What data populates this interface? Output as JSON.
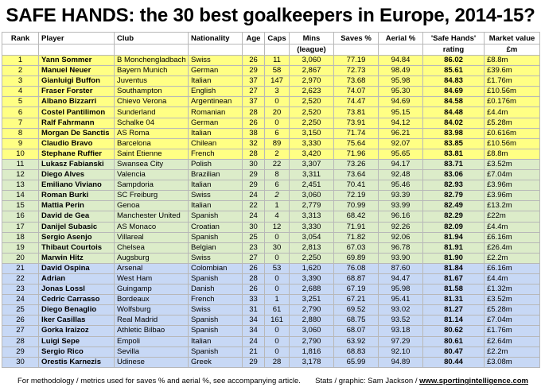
{
  "title": "SAFE HANDS: the 30 best goalkeepers in Europe, 2014-15?",
  "headers": {
    "rank": "Rank",
    "player": "Player",
    "club": "Club",
    "nationality": "Nationality",
    "age": "Age",
    "caps": "Caps",
    "mins": "Mins",
    "mins_sub": "(league)",
    "saves": "Saves %",
    "aerial": "Aerial %",
    "rating": "'Safe Hands'",
    "rating_sub": "rating",
    "market": "Market value",
    "market_sub": "£m"
  },
  "band_colors": {
    "yellow": "#ffff84",
    "green": "#dcecc9",
    "blue": "#c7d8f5"
  },
  "rows": [
    {
      "rank": "1",
      "player": "Yann Sommer",
      "club": "B Monchengladbach",
      "nationality": "Swiss",
      "age": "26",
      "caps": "11",
      "mins": "3,060",
      "saves": "77.19",
      "aerial": "94.84",
      "rating": "86.02",
      "market": "£8.8m",
      "band": "yellow",
      "caps_italic": false
    },
    {
      "rank": "2",
      "player": "Manuel Neuer",
      "club": "Bayern Munich",
      "nationality": "German",
      "age": "29",
      "caps": "58",
      "mins": "2,867",
      "saves": "72.73",
      "aerial": "98.49",
      "rating": "85.61",
      "market": "£39.6m",
      "band": "yellow",
      "caps_italic": false
    },
    {
      "rank": "3",
      "player": "Gianluigi Buffon",
      "club": "Juventus",
      "nationality": "Italian",
      "age": "37",
      "caps": "147",
      "mins": "2,970",
      "saves": "73.68",
      "aerial": "95.98",
      "rating": "84.83",
      "market": "£1.76m",
      "band": "yellow",
      "caps_italic": false
    },
    {
      "rank": "4",
      "player": "Fraser Forster",
      "club": "Southampton",
      "nationality": "English",
      "age": "27",
      "caps": "3",
      "mins": "2,623",
      "saves": "74.07",
      "aerial": "95.30",
      "rating": "84.69",
      "market": "£10.56m",
      "band": "yellow",
      "caps_italic": false
    },
    {
      "rank": "5",
      "player": "Albano Bizzarri",
      "club": "Chievo Verona",
      "nationality": "Argentinean",
      "age": "37",
      "caps": "0",
      "mins": "2,520",
      "saves": "74.47",
      "aerial": "94.69",
      "rating": "84.58",
      "market": "£0.176m",
      "band": "yellow",
      "caps_italic": false
    },
    {
      "rank": "6",
      "player": "Costel Pantilimon",
      "club": "Sunderland",
      "nationality": "Romanian",
      "age": "28",
      "caps": "20",
      "mins": "2,520",
      "saves": "73.81",
      "aerial": "95.15",
      "rating": "84.48",
      "market": "£4.4m",
      "band": "yellow",
      "caps_italic": false
    },
    {
      "rank": "7",
      "player": "Ralf Fahrmann",
      "club": "Schalke 04",
      "nationality": "German",
      "age": "26",
      "caps": "0",
      "mins": "2,250",
      "saves": "73.91",
      "aerial": "94.12",
      "rating": "84.02",
      "market": "£5.28m",
      "band": "yellow",
      "caps_italic": false
    },
    {
      "rank": "8",
      "player": "Morgan De Sanctis",
      "club": "AS Roma",
      "nationality": "Italian",
      "age": "38",
      "caps": "6",
      "mins": "3,150",
      "saves": "71.74",
      "aerial": "96.21",
      "rating": "83.98",
      "market": "£0.616m",
      "band": "yellow",
      "caps_italic": false
    },
    {
      "rank": "9",
      "player": "Claudio Bravo",
      "club": "Barcelona",
      "nationality": "Chilean",
      "age": "32",
      "caps": "89",
      "mins": "3,330",
      "saves": "75.64",
      "aerial": "92.07",
      "rating": "83.85",
      "market": "£10.56m",
      "band": "yellow",
      "caps_italic": false
    },
    {
      "rank": "10",
      "player": "Stephane Ruffier",
      "club": "Saint Etienne",
      "nationality": "French",
      "age": "28",
      "caps": "2",
      "mins": "3,420",
      "saves": "71.96",
      "aerial": "95.65",
      "rating": "83.81",
      "market": "£8.8m",
      "band": "yellow",
      "caps_italic": false
    },
    {
      "rank": "11",
      "player": "Lukasz Fabianski",
      "club": "Swansea City",
      "nationality": "Polish",
      "age": "30",
      "caps": "22",
      "mins": "3,307",
      "saves": "73.26",
      "aerial": "94.17",
      "rating": "83.71",
      "market": "£3.52m",
      "band": "green",
      "caps_italic": false
    },
    {
      "rank": "12",
      "player": "Diego Alves",
      "club": "Valencia",
      "nationality": "Brazilian",
      "age": "29",
      "caps": "8",
      "mins": "3,311",
      "saves": "73.64",
      "aerial": "92.48",
      "rating": "83.06",
      "market": "£7.04m",
      "band": "green",
      "caps_italic": false
    },
    {
      "rank": "13",
      "player": "Emiliano Viviano",
      "club": "Sampdoria",
      "nationality": "Italian",
      "age": "29",
      "caps": "6",
      "mins": "2,451",
      "saves": "70.41",
      "aerial": "95.46",
      "rating": "82.93",
      "market": "£3.96m",
      "band": "green",
      "caps_italic": false
    },
    {
      "rank": "14",
      "player": "Roman Burki",
      "club": "SC Freiburg",
      "nationality": "Swiss",
      "age": "24",
      "caps": "2",
      "mins": "3,060",
      "saves": "72.19",
      "aerial": "93.39",
      "rating": "82.79",
      "market": "£3.96m",
      "band": "green",
      "caps_italic": true
    },
    {
      "rank": "15",
      "player": "Mattia Perin",
      "club": "Genoa",
      "nationality": "Italian",
      "age": "22",
      "caps": "1",
      "mins": "2,779",
      "saves": "70.99",
      "aerial": "93.99",
      "rating": "82.49",
      "market": "£13.2m",
      "band": "green",
      "caps_italic": false
    },
    {
      "rank": "16",
      "player": "David de Gea",
      "club": "Manchester United",
      "nationality": "Spanish",
      "age": "24",
      "caps": "4",
      "mins": "3,313",
      "saves": "68.42",
      "aerial": "96.16",
      "rating": "82.29",
      "market": "£22m",
      "band": "green",
      "caps_italic": false
    },
    {
      "rank": "17",
      "player": "Danijel Subasic",
      "club": "AS Monaco",
      "nationality": "Croatian",
      "age": "30",
      "caps": "12",
      "mins": "3,330",
      "saves": "71.91",
      "aerial": "92.26",
      "rating": "82.09",
      "market": "£4.4m",
      "band": "green",
      "caps_italic": false
    },
    {
      "rank": "18",
      "player": "Sergio Asenjo",
      "club": "Villareal",
      "nationality": "Spanish",
      "age": "25",
      "caps": "0",
      "mins": "3,054",
      "saves": "71.82",
      "aerial": "92.06",
      "rating": "81.94",
      "market": "£6.16m",
      "band": "green",
      "caps_italic": false
    },
    {
      "rank": "19",
      "player": "Thibaut Courtois",
      "club": "Chelsea",
      "nationality": "Belgian",
      "age": "23",
      "caps": "30",
      "mins": "2,813",
      "saves": "67.03",
      "aerial": "96.78",
      "rating": "81.91",
      "market": "£26.4m",
      "band": "green",
      "caps_italic": false
    },
    {
      "rank": "20",
      "player": "Marwin Hitz",
      "club": "Augsburg",
      "nationality": "Swiss",
      "age": "27",
      "caps": "0",
      "mins": "2,250",
      "saves": "69.89",
      "aerial": "93.90",
      "rating": "81.90",
      "market": "£2.2m",
      "band": "green",
      "caps_italic": false
    },
    {
      "rank": "21",
      "player": "David Ospina",
      "club": "Arsenal",
      "nationality": "Colombian",
      "age": "26",
      "caps": "53",
      "mins": "1,620",
      "saves": "76.08",
      "aerial": "87.60",
      "rating": "81.84",
      "market": "£6.16m",
      "band": "blue",
      "caps_italic": false
    },
    {
      "rank": "22",
      "player": "Adrian",
      "club": "West Ham",
      "nationality": "Spanish",
      "age": "28",
      "caps": "0",
      "mins": "3,390",
      "saves": "68.87",
      "aerial": "94.47",
      "rating": "81.67",
      "market": "£4.4m",
      "band": "blue",
      "caps_italic": false
    },
    {
      "rank": "23",
      "player": "Jonas Lossl",
      "club": "Guingamp",
      "nationality": "Danish",
      "age": "26",
      "caps": "0",
      "mins": "2,688",
      "saves": "67.19",
      "aerial": "95.98",
      "rating": "81.58",
      "market": "£1.32m",
      "band": "blue",
      "caps_italic": false
    },
    {
      "rank": "24",
      "player": "Cedric Carrasso",
      "club": "Bordeaux",
      "nationality": "French",
      "age": "33",
      "caps": "1",
      "mins": "3,251",
      "saves": "67.21",
      "aerial": "95.41",
      "rating": "81.31",
      "market": "£3.52m",
      "band": "blue",
      "caps_italic": false
    },
    {
      "rank": "25",
      "player": "Diego Benaglio",
      "club": "Wolfsburg",
      "nationality": "Swiss",
      "age": "31",
      "caps": "61",
      "mins": "2,790",
      "saves": "69.52",
      "aerial": "93.02",
      "rating": "81.27",
      "market": "£5.28m",
      "band": "blue",
      "caps_italic": false
    },
    {
      "rank": "26",
      "player": "Iker Casillas",
      "club": "Real Madrid",
      "nationality": "Spanish",
      "age": "34",
      "caps": "161",
      "mins": "2,880",
      "saves": "68.75",
      "aerial": "93.52",
      "rating": "81.14",
      "market": "£7.04m",
      "band": "blue",
      "caps_italic": false
    },
    {
      "rank": "27",
      "player": "Gorka Iraizoz",
      "club": "Athletic Bilbao",
      "nationality": "Spanish",
      "age": "34",
      "caps": "0",
      "mins": "3,060",
      "saves": "68.07",
      "aerial": "93.18",
      "rating": "80.62",
      "market": "£1.76m",
      "band": "blue",
      "caps_italic": false
    },
    {
      "rank": "28",
      "player": "Luigi Sepe",
      "club": "Empoli",
      "nationality": "Italian",
      "age": "24",
      "caps": "0",
      "mins": "2,790",
      "saves": "63.92",
      "aerial": "97.29",
      "rating": "80.61",
      "market": "£2.64m",
      "band": "blue",
      "caps_italic": false
    },
    {
      "rank": "29",
      "player": "Sergio Rico",
      "club": "Sevilla",
      "nationality": "Spanish",
      "age": "21",
      "caps": "0",
      "mins": "1,816",
      "saves": "68.83",
      "aerial": "92.10",
      "rating": "80.47",
      "market": "£2.2m",
      "band": "blue",
      "caps_italic": false
    },
    {
      "rank": "30",
      "player": "Orestis Karnezis",
      "club": "Udinese",
      "nationality": "Greek",
      "age": "29",
      "caps": "28",
      "mins": "3,178",
      "saves": "65.99",
      "aerial": "94.89",
      "rating": "80.44",
      "market": "£3.08m",
      "band": "blue",
      "caps_italic": false
    }
  ],
  "footer": {
    "methodology": "For methodology / metrics used for saves % and aerial %, see accompanying article.",
    "credit": "Stats / graphic: Sam Jackson / ",
    "link": "www.sportingintelligence.com"
  }
}
